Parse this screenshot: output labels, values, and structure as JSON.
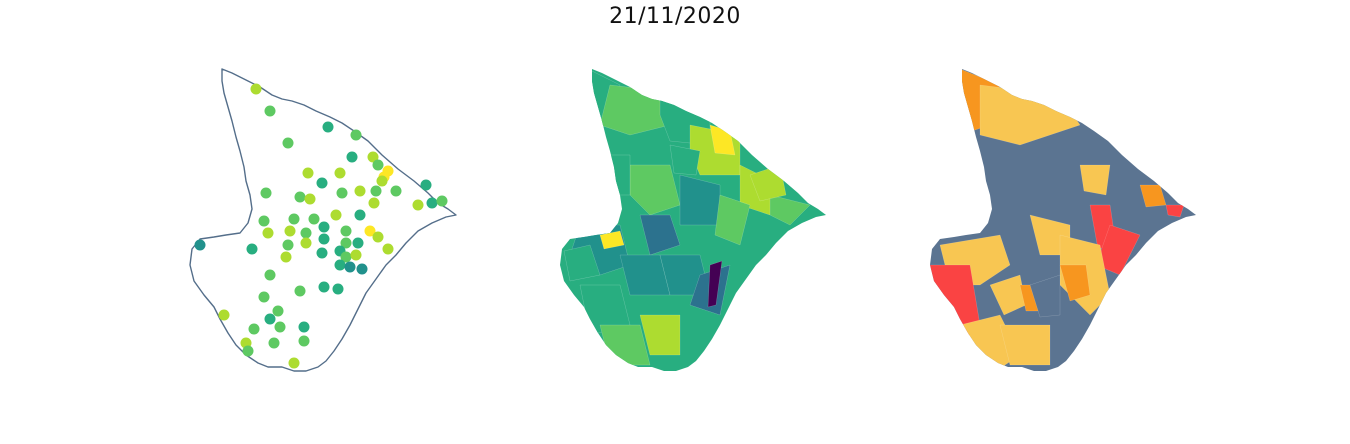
{
  "figure": {
    "title": "21/11/2020"
  },
  "colors": {
    "outline": "#546e8a",
    "viridis": [
      "#440154",
      "#3b528b",
      "#2c728e",
      "#21918c",
      "#28ae80",
      "#5ec962",
      "#addc30",
      "#fde725"
    ],
    "risk": {
      "gray_blue": "#5b7491",
      "yellow": "#f8c652",
      "orange": "#f7961f",
      "red": "#fa4343"
    }
  },
  "panels": [
    {
      "name": "points",
      "kind": "bubble-map"
    },
    {
      "name": "choropleth",
      "kind": "continuous-choropleth"
    },
    {
      "name": "risk",
      "kind": "categorical-choropleth"
    }
  ]
}
